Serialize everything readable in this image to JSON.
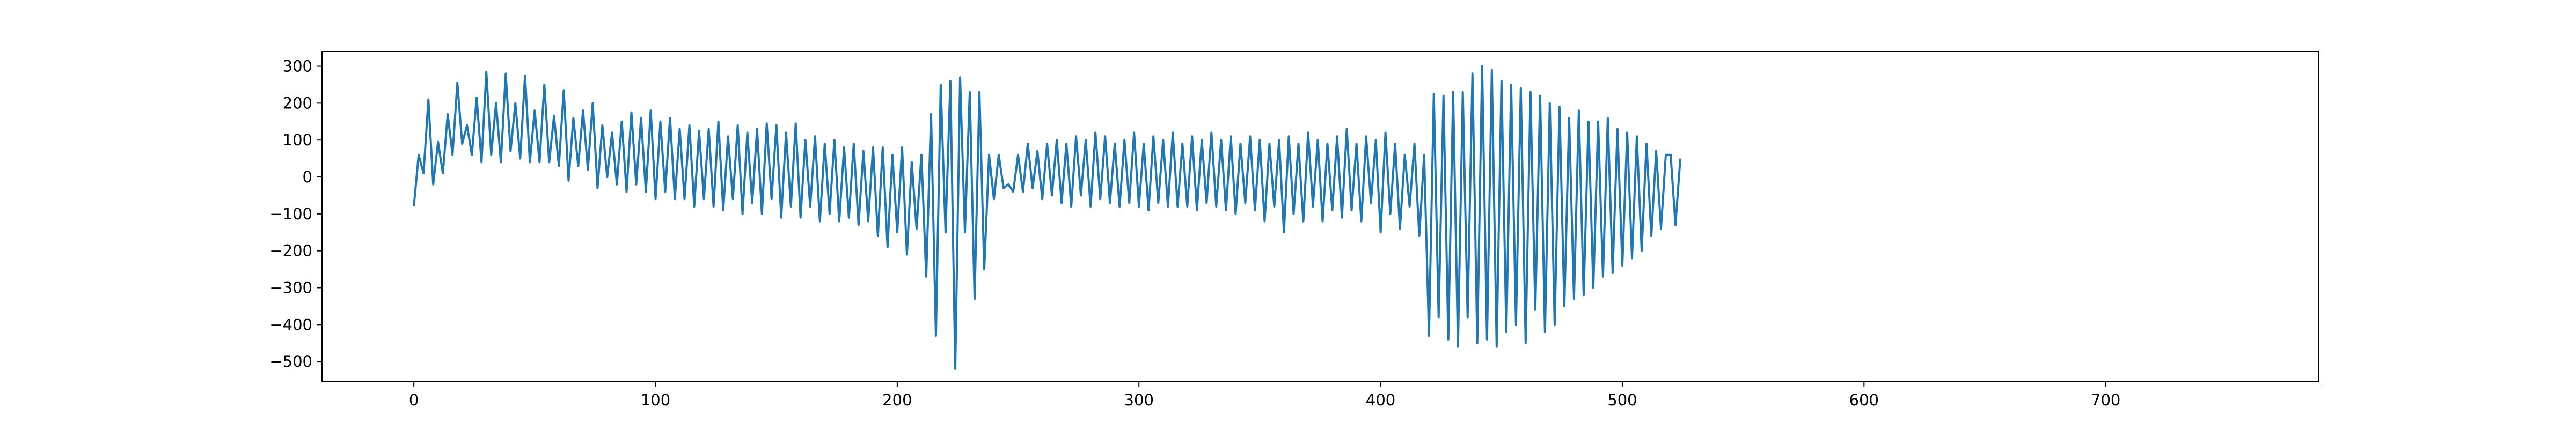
{
  "chart_data": {
    "type": "line",
    "title": "",
    "xlabel": "",
    "ylabel": "",
    "xlim": [
      -38,
      788
    ],
    "ylim": [
      -555,
      340
    ],
    "xticks": [
      0,
      100,
      200,
      300,
      400,
      500,
      600,
      700
    ],
    "yticks": [
      300,
      200,
      100,
      0,
      -100,
      -200,
      -300,
      -400,
      -500
    ],
    "grid": false,
    "legend": "none",
    "series": [
      {
        "color": "#1f77b4",
        "x_start": 0,
        "x_step": 2,
        "values": [
          -80,
          60,
          10,
          210,
          -20,
          95,
          10,
          170,
          60,
          255,
          90,
          140,
          60,
          215,
          40,
          285,
          60,
          200,
          40,
          280,
          70,
          200,
          50,
          275,
          40,
          180,
          40,
          250,
          40,
          165,
          30,
          235,
          -10,
          160,
          30,
          180,
          20,
          200,
          -30,
          140,
          0,
          120,
          -20,
          150,
          -40,
          175,
          -20,
          160,
          -40,
          180,
          -60,
          150,
          -40,
          160,
          -60,
          130,
          -60,
          140,
          -80,
          125,
          -60,
          130,
          -80,
          150,
          -90,
          110,
          -60,
          140,
          -100,
          120,
          -70,
          130,
          -100,
          145,
          -60,
          140,
          -110,
          120,
          -80,
          145,
          -110,
          100,
          -80,
          110,
          -120,
          90,
          -100,
          100,
          -120,
          80,
          -110,
          90,
          -130,
          70,
          -120,
          80,
          -160,
          80,
          -190,
          60,
          -150,
          80,
          -210,
          40,
          -140,
          60,
          -270,
          170,
          -430,
          250,
          -150,
          260,
          -520,
          270,
          -150,
          230,
          -330,
          230,
          -250,
          60,
          -60,
          60,
          -30,
          -20,
          -40,
          60,
          -40,
          90,
          -30,
          70,
          -60,
          90,
          -50,
          100,
          -70,
          90,
          -80,
          110,
          -50,
          100,
          -80,
          120,
          -60,
          110,
          -70,
          90,
          -80,
          100,
          -70,
          120,
          -80,
          90,
          -90,
          110,
          -70,
          100,
          -80,
          120,
          -80,
          90,
          -80,
          110,
          -90,
          100,
          -70,
          120,
          -80,
          100,
          -90,
          110,
          -100,
          90,
          -70,
          110,
          -90,
          100,
          -120,
          90,
          -80,
          100,
          -150,
          110,
          -100,
          90,
          -120,
          120,
          -80,
          100,
          -120,
          90,
          -90,
          110,
          -110,
          130,
          -90,
          90,
          -120,
          110,
          -70,
          100,
          -150,
          120,
          -100,
          90,
          -140,
          60,
          -80,
          90,
          -160,
          60,
          -430,
          225,
          -380,
          220,
          -440,
          230,
          -460,
          230,
          -380,
          280,
          -450,
          300,
          -440,
          290,
          -460,
          260,
          -420,
          250,
          -400,
          240,
          -450,
          230,
          -360,
          220,
          -420,
          200,
          -400,
          190,
          -350,
          160,
          -330,
          180,
          -320,
          150,
          -300,
          150,
          -270,
          160,
          -260,
          130,
          -240,
          120,
          -220,
          110,
          -200,
          90,
          -160,
          70,
          -140,
          60,
          60,
          -130,
          50
        ]
      }
    ]
  }
}
